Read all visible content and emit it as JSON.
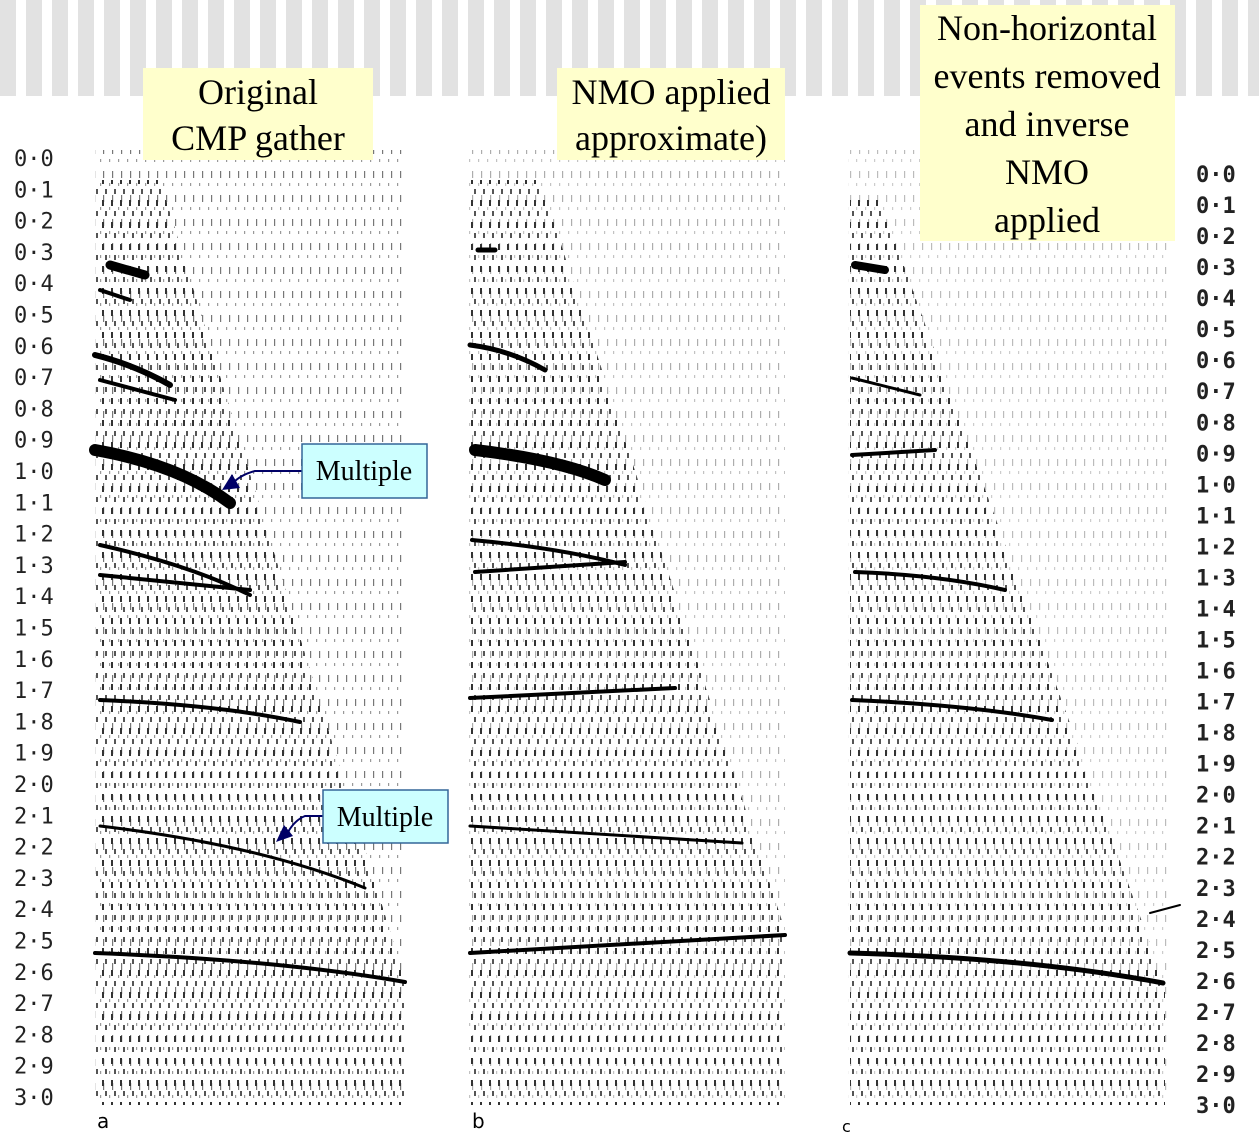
{
  "panels": [
    {
      "letter": "a",
      "title_lines": [
        "Original",
        "CMP gather"
      ]
    },
    {
      "letter": "b",
      "title_lines": [
        "NMO applied",
        "approximate)"
      ]
    },
    {
      "letter": "c",
      "title_lines": [
        "Non-horizontal",
        "events removed",
        "and inverse",
        "NMO",
        "applied"
      ]
    }
  ],
  "callouts": [
    "Multiple",
    "Multiple"
  ],
  "left_axis": [
    "0·0",
    "0·1",
    "0·2",
    "0·3",
    "0·4",
    "0·5",
    "0·6",
    "0·7",
    "0·8",
    "0·9",
    "1·0",
    "1·1",
    "1·2",
    "1·3",
    "1·4",
    "1·5",
    "1·6",
    "1·7",
    "1·8",
    "1·9",
    "2·0",
    "2·1",
    "2·2",
    "2·3",
    "2·4",
    "2·5",
    "2·6",
    "2·7",
    "2·8",
    "2·9",
    "3·0"
  ],
  "right_axis": [
    "0·0",
    "0·1",
    "0·2",
    "0·3",
    "0·4",
    "0·5",
    "0·6",
    "0·7",
    "0·8",
    "0·9",
    "1·0",
    "1·1",
    "1·2",
    "1·3",
    "1·4",
    "1·5",
    "1·6",
    "1·7",
    "1·8",
    "1·9",
    "2·0",
    "2·1",
    "2·2",
    "2·3",
    "2·4",
    "2·5",
    "2·6",
    "2·7",
    "2·8",
    "2·9",
    "3·0"
  ]
}
